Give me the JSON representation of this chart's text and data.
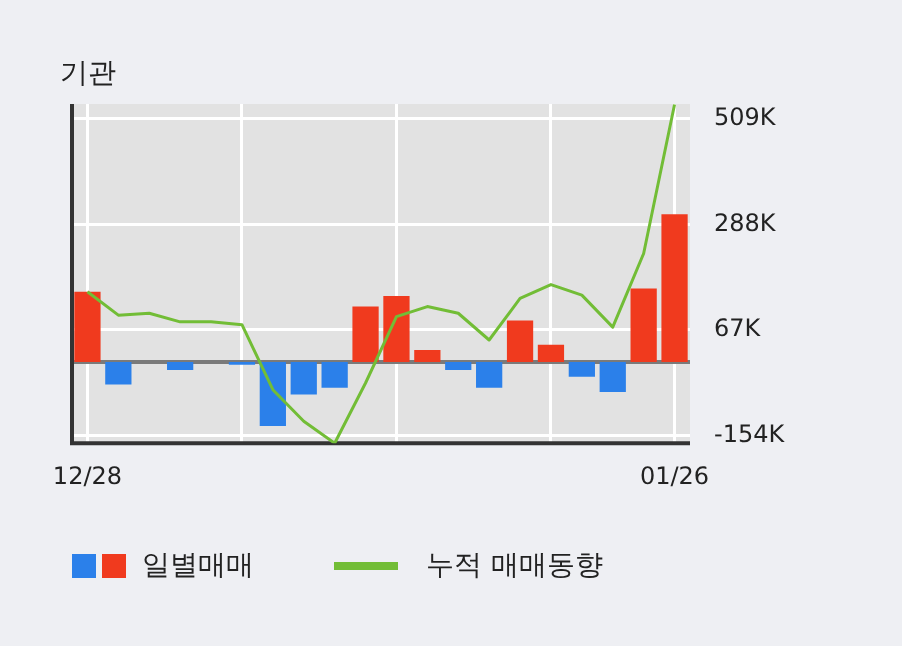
{
  "chart_data": {
    "type": "bar",
    "title": "기관",
    "categories": [
      "12/28",
      null,
      null,
      null,
      null,
      null,
      null,
      null,
      null,
      null,
      null,
      null,
      null,
      null,
      null,
      null,
      null,
      null,
      null,
      "01/26"
    ],
    "series": [
      {
        "name": "일별매매",
        "colors": [
          "#f03a1e",
          "#2b80ea",
          "#2b80ea",
          "#2b80ea",
          "#2b80ea",
          "#2b80ea",
          "#2b80ea",
          "#2b80ea",
          "#2b80ea",
          "#f03a1e",
          "#f03a1e",
          "#f03a1e",
          "#2b80ea",
          "#2b80ea",
          "#f03a1e",
          "#f03a1e",
          "#2b80ea",
          "#2b80ea",
          "#f03a1e",
          "#f03a1e"
        ],
        "values": [
          147000,
          -47000,
          0,
          -17000,
          0,
          -6000,
          -134000,
          -68000,
          -54000,
          116000,
          138000,
          25000,
          -17000,
          -54000,
          87000,
          36000,
          -31000,
          -63000,
          154000,
          309000
        ]
      },
      {
        "type": "line",
        "name": "누적 매매동향",
        "color": "#72bd36",
        "values": [
          147000,
          98000,
          102000,
          84000,
          84000,
          78000,
          -58000,
          -124000,
          -170000,
          -44000,
          95000,
          116000,
          102000,
          46000,
          133000,
          162000,
          140000,
          73000,
          227000,
          539000
        ]
      }
    ],
    "ylim": [
      -170000,
      540000
    ],
    "yticks": [
      {
        "value": -154000,
        "label": "-154K"
      },
      {
        "value": 67000,
        "label": "67K"
      },
      {
        "value": 288000,
        "label": "288K"
      },
      {
        "value": 509000,
        "label": "509K"
      }
    ],
    "grid": true,
    "legend": "bottom left"
  }
}
